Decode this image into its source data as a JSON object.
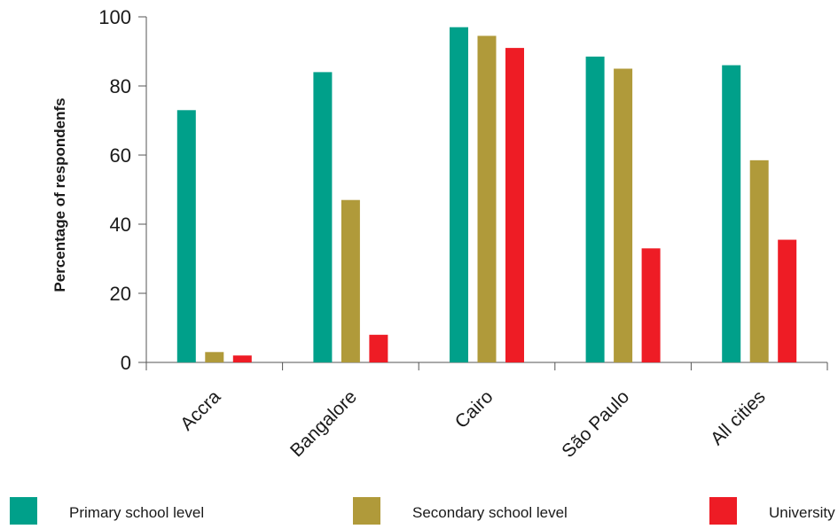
{
  "chart_data": {
    "type": "bar",
    "title": "",
    "xlabel": "",
    "ylabel": "Percentage of respondenfs",
    "ylim": [
      0,
      100
    ],
    "yticks": [
      0,
      20,
      40,
      60,
      80,
      100
    ],
    "grid": false,
    "legend_position": "bottom",
    "categories": [
      "Accra",
      "Bangalore",
      "Cairo",
      "São Paulo",
      "All cities"
    ],
    "series": [
      {
        "name": "Primary school level",
        "color": "#00a08a",
        "values": [
          73,
          84,
          97,
          88.5,
          86
        ]
      },
      {
        "name": "Secondary school level",
        "color": "#b09a3a",
        "values": [
          3,
          47,
          94.5,
          85,
          58.5
        ]
      },
      {
        "name": "University",
        "color": "#ee1c25",
        "values": [
          2,
          8,
          91,
          33,
          35.5
        ]
      }
    ]
  }
}
